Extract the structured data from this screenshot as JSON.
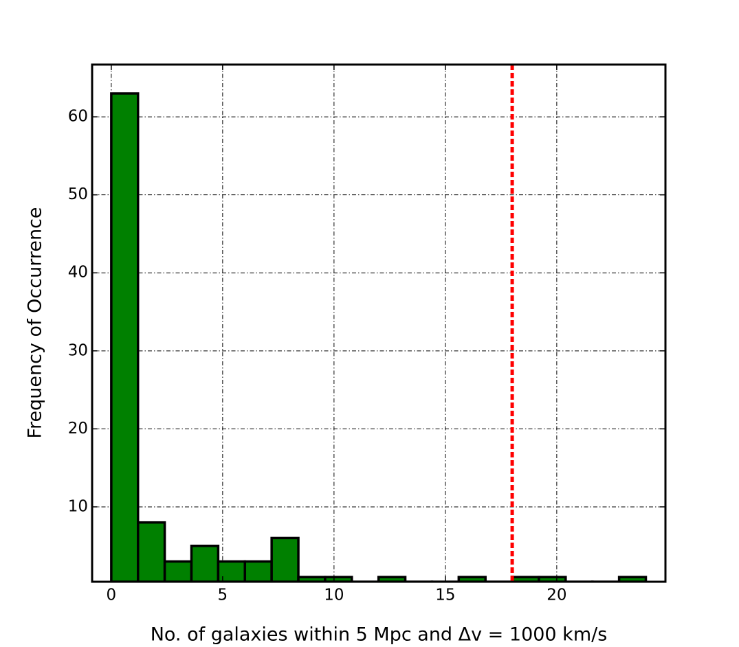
{
  "chart_data": {
    "type": "histogram",
    "x_label": "No. of galaxies within 5 Mpc and Δv = 1000 km/s",
    "y_label": "Frequency of Occurrence",
    "bins": [
      0,
      1.2,
      2.4,
      3.6,
      4.8,
      6,
      7.2,
      8.4,
      9.6,
      10.8,
      12,
      13.2,
      14.4,
      15.6,
      16.8,
      18,
      19.2,
      20.4,
      21.6,
      22.8,
      24
    ],
    "values": [
      63,
      8,
      3,
      5,
      3,
      3,
      6,
      1,
      1,
      0,
      1,
      0,
      0,
      1,
      0,
      1,
      1,
      0,
      0,
      1
    ],
    "color": "#008000",
    "xlim": [
      -0.86,
      24.88
    ],
    "ylim": [
      0.4,
      66.7
    ],
    "xticks": [
      0,
      5,
      10,
      15,
      20
    ],
    "yticks": [
      10,
      20,
      30,
      40,
      50,
      60
    ],
    "grid": true,
    "vline": {
      "x": 18,
      "color": "#ff0000"
    }
  }
}
